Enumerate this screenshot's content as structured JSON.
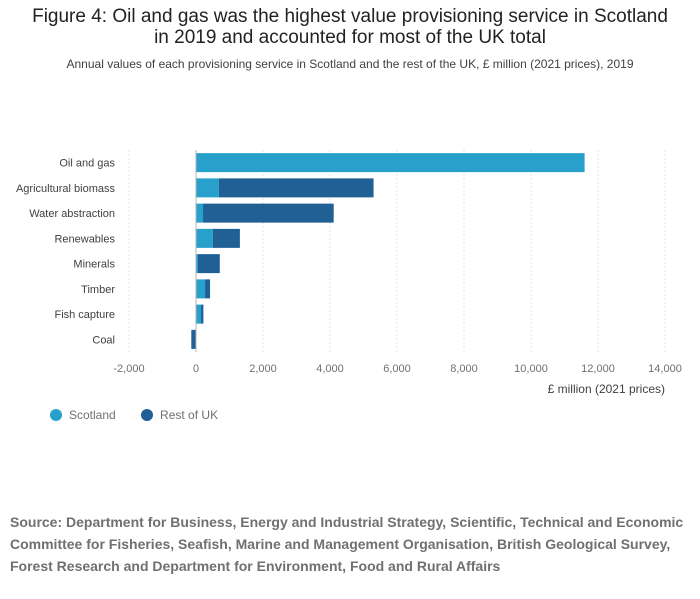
{
  "title_lines": [
    "Figure 4: Oil and gas was the highest value provisioning service in Scotland",
    "in 2019 and accounted for most of the UK total"
  ],
  "subtitle": "Annual values of each provisioning service in Scotland and the rest of the UK, £ million (2021 prices), 2019",
  "source": "Source: Department for Business, Energy and Industrial Strategy, Scientific, Technical and Economic Committee for Fisheries, Seafish, Marine and Management Organisation, British Geological Survey, Forest Research and Department for Environment, Food and Rural Affairs",
  "chart_data": {
    "type": "bar",
    "orientation": "horizontal",
    "stacked": true,
    "categories": [
      "Oil and gas",
      "Agricultural biomass",
      "Water abstraction",
      "Renewables",
      "Minerals",
      "Timber",
      "Fish capture",
      "Coal"
    ],
    "series": [
      {
        "name": "Scotland",
        "color": "#27a0cc",
        "values": [
          11600,
          680,
          210,
          500,
          60,
          270,
          150,
          0
        ]
      },
      {
        "name": "Rest of UK",
        "color": "#206095",
        "values": [
          0,
          4620,
          3900,
          810,
          650,
          150,
          70,
          -140
        ]
      }
    ],
    "xlabel": "£ million (2021 prices)",
    "xlim": [
      -2000,
      14000
    ],
    "xticks": [
      -2000,
      0,
      2000,
      4000,
      6000,
      8000,
      10000,
      12000,
      14000
    ],
    "xtick_labels": [
      "-2,000",
      "0",
      "2,000",
      "4,000",
      "6,000",
      "8,000",
      "10,000",
      "12,000",
      "14,000"
    ],
    "grid": true,
    "legend_position": "bottom-left"
  }
}
